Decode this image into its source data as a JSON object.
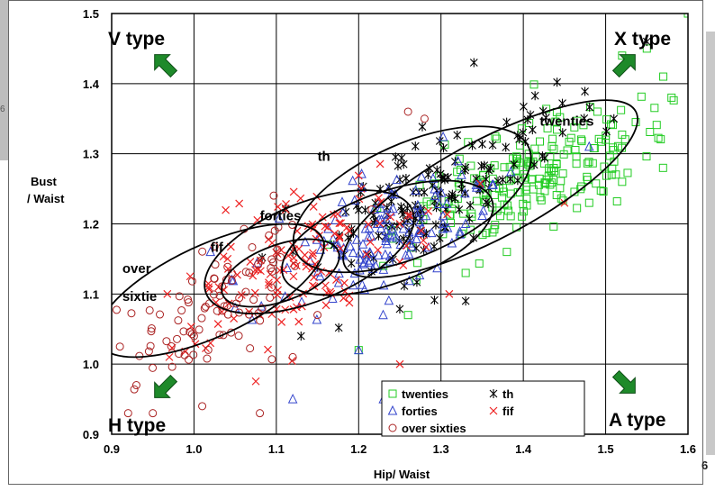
{
  "page_number": "6",
  "left_margin_number": "6",
  "chart_data": {
    "type": "scatter",
    "title": "",
    "xlabel": "Hip/ Waist",
    "ylabel": [
      "Bust",
      "/ Waist"
    ],
    "xlim": [
      0.9,
      1.6
    ],
    "ylim": [
      0.9,
      1.5
    ],
    "xticks": [
      "0.9",
      "1.0",
      "1.1",
      "1.2",
      "1.3",
      "1.4",
      "1.5",
      "1.6"
    ],
    "yticks": [
      "0.9",
      "1.0",
      "1.1",
      "1.2",
      "1.3",
      "1.4",
      "1.5"
    ],
    "grid": true,
    "legend_position": "bottom-center",
    "colors": {
      "twenties": "#22cc22",
      "th": "#000000",
      "forties": "#3344cc",
      "fif": "#ee2222",
      "over_sixties": "#aa2222",
      "ellipse": "#000000",
      "arrow": "#1e8a2a"
    },
    "legend": [
      {
        "name": "twenties",
        "marker": "square",
        "color": "#22cc22"
      },
      {
        "name": "th",
        "marker": "asterisk",
        "color": "#000000"
      },
      {
        "name": "forties",
        "marker": "triangle",
        "color": "#3344cc"
      },
      {
        "name": "fif",
        "marker": "x",
        "color": "#ee2222"
      },
      {
        "name": "over sixties",
        "marker": "circle",
        "color": "#aa2222"
      }
    ],
    "quadrant_labels": [
      {
        "text": "V type",
        "arrow": "up-left"
      },
      {
        "text": "X type",
        "arrow": "up-right"
      },
      {
        "text": "H type",
        "arrow": "down-left"
      },
      {
        "text": "A type",
        "arrow": "down-right"
      }
    ],
    "cluster_labels": [
      {
        "text": "twenties",
        "x": 1.42,
        "y": 1.34
      },
      {
        "text": "th",
        "x": 1.15,
        "y": 1.29
      },
      {
        "text": "forties",
        "x": 1.08,
        "y": 1.205
      },
      {
        "text": "fif",
        "x": 1.02,
        "y": 1.16
      },
      {
        "text": "over",
        "x": 0.913,
        "y": 1.13
      },
      {
        "text": "sixtie",
        "x": 0.913,
        "y": 1.09
      }
    ],
    "ellipses": [
      {
        "name": "twenties",
        "cx": 1.36,
        "cy": 1.25,
        "rx": 0.2,
        "ry": 0.07,
        "angle_deg": -28
      },
      {
        "name": "th",
        "cx": 1.265,
        "cy": 1.235,
        "rx": 0.155,
        "ry": 0.08,
        "angle_deg": -24
      },
      {
        "name": "forties",
        "cx": 1.235,
        "cy": 1.18,
        "rx": 0.135,
        "ry": 0.065,
        "angle_deg": -20
      },
      {
        "name": "fif",
        "cx": 1.14,
        "cy": 1.16,
        "rx": 0.135,
        "ry": 0.07,
        "angle_deg": -22
      },
      {
        "name": "fif-core",
        "cx": 1.105,
        "cy": 1.13,
        "rx": 0.075,
        "ry": 0.04,
        "angle_deg": -20
      },
      {
        "name": "over sixties",
        "cx": 1.02,
        "cy": 1.105,
        "rx": 0.15,
        "ry": 0.065,
        "angle_deg": -25
      }
    ],
    "series": [
      {
        "name": "twenties",
        "marker": "square",
        "color": "#22cc22",
        "center": [
          1.41,
          1.27
        ],
        "spread": [
          0.075,
          0.05
        ],
        "corr": 0.65,
        "n": 210,
        "extra": [
          [
            1.6,
            1.5
          ],
          [
            1.57,
            1.41
          ],
          [
            1.55,
            1.45
          ],
          [
            1.52,
            1.44
          ],
          [
            1.58,
            1.38
          ],
          [
            1.49,
            1.36
          ],
          [
            1.5,
            1.32
          ],
          [
            1.52,
            1.26
          ],
          [
            1.48,
            1.23
          ],
          [
            1.38,
            1.16
          ],
          [
            1.33,
            1.13
          ],
          [
            1.27,
            1.12
          ],
          [
            1.23,
            1.14
          ],
          [
            1.26,
            1.07
          ],
          [
            1.2,
            1.02
          ]
        ]
      },
      {
        "name": "th",
        "marker": "asterisk",
        "color": "#000000",
        "center": [
          1.29,
          1.24
        ],
        "spread": [
          0.07,
          0.06
        ],
        "corr": 0.7,
        "n": 150,
        "extra": [
          [
            1.34,
            1.43
          ],
          [
            1.55,
            1.46
          ],
          [
            1.51,
            1.35
          ],
          [
            1.13,
            1.04
          ],
          [
            1.17,
            1.17
          ],
          [
            1.12,
            1.16
          ],
          [
            1.2,
            1.22
          ],
          [
            1.33,
            1.09
          ]
        ]
      },
      {
        "name": "forties",
        "marker": "triangle",
        "color": "#3344cc",
        "center": [
          1.22,
          1.18
        ],
        "spread": [
          0.065,
          0.05
        ],
        "corr": 0.6,
        "n": 140,
        "extra": [
          [
            1.02,
            1.16
          ],
          [
            1.12,
            0.95
          ],
          [
            1.23,
            0.95
          ],
          [
            1.2,
            1.02
          ],
          [
            1.05,
            1.08
          ],
          [
            1.33,
            1.2
          ],
          [
            1.48,
            1.31
          ]
        ]
      },
      {
        "name": "fif",
        "marker": "x",
        "color": "#ee2222",
        "center": [
          1.13,
          1.14
        ],
        "spread": [
          0.07,
          0.055
        ],
        "corr": 0.55,
        "n": 140,
        "extra": [
          [
            1.25,
            1.0
          ],
          [
            1.31,
            1.1
          ],
          [
            1.45,
            1.23
          ],
          [
            1.03,
            1.11
          ],
          [
            1.02,
            1.03
          ],
          [
            0.97,
            1.01
          ],
          [
            1.08,
            1.07
          ],
          [
            1.25,
            1.2
          ]
        ]
      },
      {
        "name": "over sixties",
        "marker": "circle",
        "color": "#aa2222",
        "center": [
          1.03,
          1.08
        ],
        "spread": [
          0.055,
          0.05
        ],
        "corr": 0.5,
        "n": 90,
        "extra": [
          [
            0.91,
            1.025
          ],
          [
            0.92,
            0.93
          ],
          [
            0.93,
            0.97
          ],
          [
            0.95,
            0.93
          ],
          [
            1.01,
            0.94
          ],
          [
            1.08,
            0.93
          ],
          [
            1.0,
            1.04
          ],
          [
            1.26,
            1.36
          ],
          [
            1.28,
            1.35
          ],
          [
            1.12,
            1.01
          ],
          [
            1.15,
            1.07
          ]
        ]
      }
    ]
  }
}
